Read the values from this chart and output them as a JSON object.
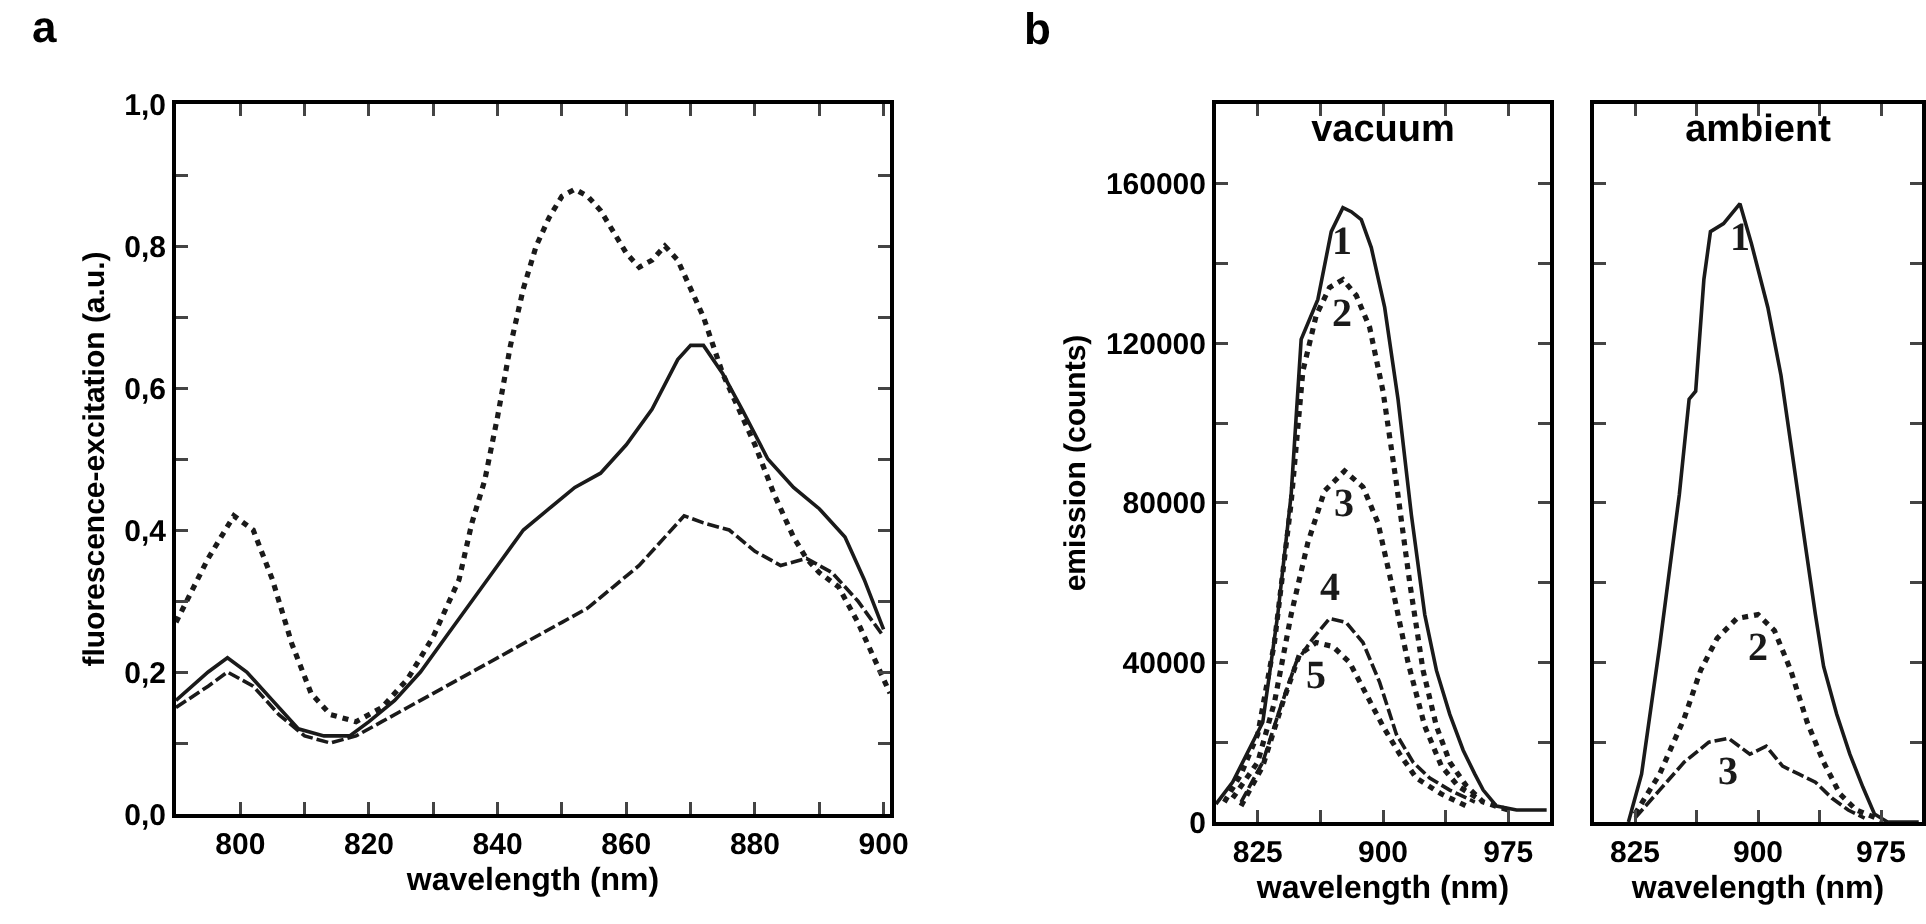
{
  "chart_data": [
    {
      "type": "line",
      "xlabel": "wavelength (nm)",
      "ylabel": "fluorescence-excitation (a.u.)",
      "annotations": [
        "a"
      ],
      "xlim": [
        790,
        901
      ],
      "ylim": [
        0,
        1.0
      ],
      "xticks": [
        800,
        {
          "value": 810,
          "label": null
        },
        820,
        {
          "value": 830,
          "label": null
        },
        840,
        {
          "value": 850,
          "label": null
        },
        860,
        {
          "value": 870,
          "label": null
        },
        880,
        {
          "value": 890,
          "label": null
        },
        900
      ],
      "yticks": [
        {
          "value": 0,
          "label": "0,0"
        },
        {
          "value": 0.1,
          "label": null
        },
        {
          "value": 0.2,
          "label": "0,2"
        },
        {
          "value": 0.3,
          "label": null
        },
        {
          "value": 0.4,
          "label": "0,4"
        },
        {
          "value": 0.5,
          "label": null
        },
        {
          "value": 0.6,
          "label": "0,6"
        },
        {
          "value": 0.7,
          "label": null
        },
        {
          "value": 0.8,
          "label": "0,8"
        },
        {
          "value": 0.9,
          "label": null
        },
        {
          "value": 1.0,
          "label": "1,0"
        }
      ],
      "grid": false,
      "legend": false,
      "marker": "none",
      "series": [
        {
          "color": "#1a1a1a",
          "line_style": "dotted",
          "x": [
            790,
            795,
            799,
            802,
            805,
            808,
            811,
            814,
            818,
            822,
            826,
            830,
            834,
            836,
            838,
            840,
            842,
            844,
            846,
            848,
            850,
            852,
            854,
            856,
            858,
            860,
            862,
            864,
            866,
            868,
            870,
            872,
            875,
            878,
            880,
            883,
            886,
            888,
            890,
            893,
            896,
            899,
            901
          ],
          "values": [
            0.27,
            0.36,
            0.42,
            0.4,
            0.33,
            0.24,
            0.17,
            0.14,
            0.13,
            0.15,
            0.19,
            0.25,
            0.33,
            0.41,
            0.47,
            0.56,
            0.66,
            0.74,
            0.8,
            0.84,
            0.87,
            0.88,
            0.87,
            0.85,
            0.82,
            0.79,
            0.77,
            0.78,
            0.8,
            0.78,
            0.74,
            0.7,
            0.62,
            0.56,
            0.52,
            0.45,
            0.39,
            0.36,
            0.34,
            0.32,
            0.27,
            0.21,
            0.17
          ]
        },
        {
          "color": "#1a1a1a",
          "line_style": "solid",
          "x": [
            790,
            795,
            798,
            801,
            805,
            809,
            813,
            817,
            820,
            824,
            828,
            832,
            836,
            840,
            844,
            848,
            852,
            856,
            860,
            864,
            868,
            870,
            872,
            875,
            878,
            882,
            886,
            890,
            894,
            897,
            900
          ],
          "values": [
            0.16,
            0.2,
            0.22,
            0.2,
            0.16,
            0.12,
            0.11,
            0.11,
            0.13,
            0.16,
            0.2,
            0.25,
            0.3,
            0.35,
            0.4,
            0.43,
            0.46,
            0.48,
            0.52,
            0.57,
            0.64,
            0.66,
            0.66,
            0.62,
            0.57,
            0.5,
            0.46,
            0.43,
            0.39,
            0.33,
            0.26
          ]
        },
        {
          "color": "#1a1a1a",
          "line_style": "dashed",
          "x": [
            790,
            795,
            798,
            802,
            806,
            810,
            814,
            818,
            822,
            826,
            830,
            834,
            838,
            842,
            846,
            850,
            854,
            858,
            862,
            866,
            869,
            872,
            876,
            880,
            884,
            888,
            892,
            896,
            900
          ],
          "values": [
            0.15,
            0.18,
            0.2,
            0.18,
            0.14,
            0.11,
            0.1,
            0.11,
            0.13,
            0.15,
            0.17,
            0.19,
            0.21,
            0.23,
            0.25,
            0.27,
            0.29,
            0.32,
            0.35,
            0.39,
            0.42,
            0.41,
            0.4,
            0.37,
            0.35,
            0.36,
            0.34,
            0.3,
            0.25
          ]
        }
      ]
    },
    {
      "type": "line",
      "title": "vacuum",
      "xlabel": "wavelength (nm)",
      "ylabel": "emission (counts)",
      "annotations": [
        "b"
      ],
      "xlim": [
        800,
        1000
      ],
      "ylim": [
        0,
        180000
      ],
      "xticks": [
        825,
        {
          "value": 862.5,
          "label": null
        },
        900,
        {
          "value": 937.5,
          "label": null
        },
        975
      ],
      "yticks": [
        0,
        {
          "value": 20000,
          "label": null
        },
        40000,
        {
          "value": 60000,
          "label": null
        },
        80000,
        {
          "value": 100000,
          "label": null
        },
        120000,
        {
          "value": 140000,
          "label": null
        },
        160000
      ],
      "grid": false,
      "legend": false,
      "marker": "none",
      "series": [
        {
          "name": "1",
          "color": "#1a1a1a",
          "line_style": "solid",
          "x": [
            800,
            810,
            828,
            837,
            845,
            851,
            861,
            869,
            876,
            881,
            887,
            893,
            901,
            909,
            917,
            925,
            932,
            940,
            948,
            955,
            960,
            968,
            980,
            998
          ],
          "values": [
            4500,
            10000,
            25000,
            52000,
            82000,
            121000,
            131000,
            148000,
            154000,
            153000,
            151000,
            144000,
            129000,
            106000,
            77000,
            52000,
            38000,
            27000,
            18000,
            12000,
            8000,
            4000,
            3000,
            3000
          ]
        },
        {
          "name": "2",
          "color": "#1a1a1a",
          "line_style": "dotted",
          "x": [
            805,
            815,
            825,
            835,
            845,
            852,
            860,
            868,
            876,
            884,
            892,
            900,
            908,
            916,
            924,
            932,
            940,
            950,
            960,
            975
          ],
          "values": [
            5000,
            12000,
            22000,
            45000,
            80000,
            113000,
            127000,
            134000,
            136000,
            132000,
            124000,
            108000,
            85000,
            60000,
            38000,
            24000,
            15000,
            9000,
            5000,
            3000
          ]
        },
        {
          "name": "3",
          "color": "#1a1a1a",
          "line_style": "dotted",
          "x": [
            810,
            825,
            835,
            845,
            855,
            865,
            877,
            888,
            897,
            905,
            915,
            925,
            935,
            945,
            960
          ],
          "values": [
            6000,
            15000,
            30000,
            52000,
            70000,
            83000,
            88000,
            84000,
            75000,
            60000,
            40000,
            24000,
            14000,
            9000,
            5000
          ]
        },
        {
          "name": "4",
          "color": "#1a1a1a",
          "line_style": "dashed",
          "x": [
            815,
            828,
            838,
            848,
            858,
            868,
            878,
            888,
            898,
            908,
            918,
            928,
            940,
            955
          ],
          "values": [
            5000,
            15000,
            28000,
            40000,
            46000,
            51000,
            50000,
            45000,
            35000,
            22000,
            15000,
            11000,
            8000,
            5000
          ]
        },
        {
          "name": "5",
          "color": "#1a1a1a",
          "line_style": "dotted",
          "x": [
            815,
            828,
            840,
            850,
            860,
            870,
            880,
            890,
            900,
            910,
            920,
            935,
            950
          ],
          "values": [
            4000,
            14000,
            30000,
            42000,
            45000,
            44000,
            40000,
            32000,
            24000,
            17000,
            11000,
            7000,
            4000
          ]
        }
      ]
    },
    {
      "type": "line",
      "title": "ambient",
      "xlabel": "wavelength (nm)",
      "tick_labels": "x",
      "xlim": [
        800,
        1000
      ],
      "ylim": [
        0,
        180000
      ],
      "xticks": [
        825,
        {
          "value": 862.5,
          "label": null
        },
        900,
        {
          "value": 937.5,
          "label": null
        },
        975
      ],
      "yticks": [
        0,
        {
          "value": 20000,
          "label": null
        },
        40000,
        {
          "value": 60000,
          "label": null
        },
        80000,
        {
          "value": 100000,
          "label": null
        },
        120000,
        {
          "value": 140000,
          "label": null
        },
        160000
      ],
      "grid": false,
      "legend": false,
      "marker": "none",
      "series": [
        {
          "name": "1",
          "color": "#1a1a1a",
          "line_style": "solid",
          "x": [
            821,
            829,
            840,
            852,
            858,
            862,
            867,
            871,
            879,
            889,
            896,
            906,
            914,
            921,
            929,
            935,
            940,
            948,
            956,
            964,
            971,
            979,
            998
          ],
          "values": [
            0,
            12000,
            44000,
            82000,
            106000,
            108000,
            136000,
            148000,
            150000,
            155000,
            145000,
            129000,
            112000,
            92000,
            69000,
            52000,
            39000,
            27000,
            17000,
            8700,
            2000,
            0,
            0
          ]
        },
        {
          "name": "2",
          "color": "#1a1a1a",
          "line_style": "dotted",
          "x": [
            825,
            840,
            855,
            865,
            875,
            887,
            900,
            910,
            920,
            930,
            940,
            950,
            960,
            975
          ],
          "values": [
            2000,
            12000,
            26000,
            38000,
            46000,
            51000,
            52000,
            48000,
            38000,
            25000,
            15000,
            7000,
            3000,
            500
          ]
        },
        {
          "name": "3",
          "color": "#1a1a1a",
          "line_style": "dashed",
          "x": [
            825,
            840,
            855,
            870,
            882,
            895,
            905,
            915,
            925,
            935,
            945,
            955,
            965
          ],
          "values": [
            1000,
            8000,
            15000,
            20000,
            21000,
            17000,
            19000,
            14000,
            12000,
            10000,
            6000,
            3000,
            1000
          ]
        }
      ]
    }
  ]
}
